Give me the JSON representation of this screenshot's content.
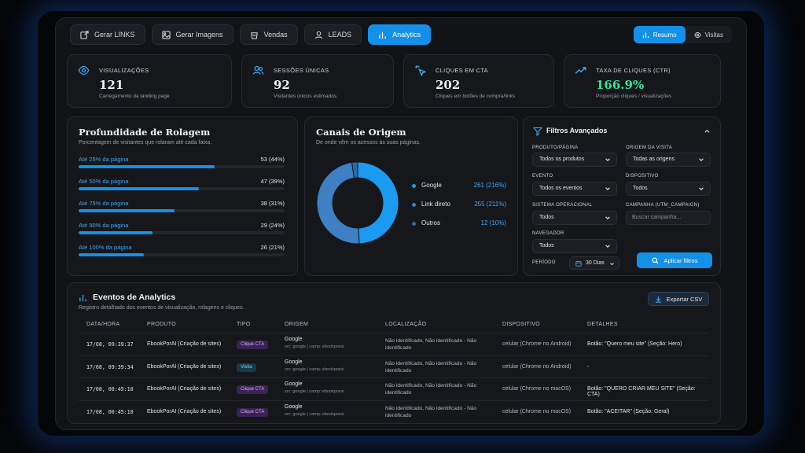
{
  "nav": {
    "tabs": [
      {
        "label": "Gerar LINKS",
        "icon": "external-link-icon"
      },
      {
        "label": "Gerar Imagens",
        "icon": "image-icon"
      },
      {
        "label": "Vendas",
        "icon": "bag-icon"
      },
      {
        "label": "LEADS",
        "icon": "user-icon"
      },
      {
        "label": "Analytics",
        "icon": "bar-chart-icon"
      }
    ],
    "active": "Analytics",
    "views": [
      {
        "label": "Resumo",
        "icon": "bar-chart-icon"
      },
      {
        "label": "Visitas",
        "icon": "eye-icon"
      }
    ],
    "active_view": "Resumo"
  },
  "stats": [
    {
      "label": "VISUALIZAÇÕES",
      "value": "121",
      "sub": "Carregamento da landing page",
      "icon": "eye-icon"
    },
    {
      "label": "SESSÕES ÚNICAS",
      "value": "92",
      "sub": "Visitantes únicos estimados",
      "icon": "users-icon"
    },
    {
      "label": "CLIQUES EM CTA",
      "value": "202",
      "sub": "Cliques em botões de compra/links",
      "icon": "pointer-click-icon"
    },
    {
      "label": "TAXA DE CLIQUES (CTR)",
      "value": "166.9%",
      "sub": "Proporção cliques / visualizações",
      "icon": "trend-up-icon"
    }
  ],
  "scroll": {
    "title": "Profundidade de Rolagem",
    "subtitle": "Porcentagem de visitantes que rolaram até cada faixa.",
    "rows": [
      {
        "label": "Até 25% da página",
        "value": "53 (44%)",
        "pct": 0.44
      },
      {
        "label": "Até 50% da página",
        "value": "47 (39%)",
        "pct": 0.39
      },
      {
        "label": "Até 75% da página",
        "value": "38 (31%)",
        "pct": 0.31
      },
      {
        "label": "Até 90% da página",
        "value": "29 (24%)",
        "pct": 0.24
      },
      {
        "label": "Até 100% da página",
        "value": "26 (21%)",
        "pct": 0.21
      }
    ]
  },
  "channels": {
    "title": "Canais de Origem",
    "subtitle": "De onde vêm os acessos às suas páginas.",
    "items": [
      {
        "name": "Google",
        "value": "261 (216%)",
        "count": 261,
        "color": "#1a9af0"
      },
      {
        "name": "Link direto",
        "value": "255 (211%)",
        "count": 255,
        "color": "#3f7fc4"
      },
      {
        "name": "Outros",
        "value": "12 (10%)",
        "count": 12,
        "color": "#2b6aa8"
      }
    ]
  },
  "filters": {
    "title": "Filtros Avançados",
    "product_label": "PRODUTO/PÁGINA",
    "product_value": "Todos os produtos",
    "origin_label": "ORIGEM DA VISITA",
    "origin_value": "Todas as origens",
    "event_label": "EVENTO",
    "event_value": "Todos os eventos",
    "device_label": "DISPOSITIVO",
    "device_value": "Todos",
    "os_label": "SISTEMA OPERACIONAL",
    "os_value": "Todos",
    "campaign_label": "CAMPANHA (UTM_CAMPAIGN)",
    "campaign_placeholder": "Buscar campanha...",
    "browser_label": "NAVEGADOR",
    "browser_value": "Todos",
    "period_label": "PERÍODO",
    "period_value": "30 Dias",
    "apply_label": "Aplicar filtros"
  },
  "events": {
    "title": "Eventos de Analytics",
    "subtitle": "Registro detalhado dos eventos de visualização, rolagens e cliques.",
    "export_label": "Exportar CSV",
    "columns": [
      "DATA/HORA",
      "PRODUTO",
      "TIPO",
      "ORIGEM",
      "LOCALIZAÇÃO",
      "DISPOSITIVO",
      "DETALHES"
    ],
    "rows": [
      {
        "datetime": "17/08, 09:39:37",
        "product": "EbookPorAI (Criação de sites)",
        "type": "Clique CTA",
        "origin": "Google",
        "origin_sub": "src: google | camp: ebookporai",
        "location": "Não identificado, Não identificado - Não identificado",
        "device": "celular (Chrome no Android)",
        "details": "Botão: \"Quero meu site\" (Seção: Hero)"
      },
      {
        "datetime": "17/08, 09:39:34",
        "product": "EbookPorAI (Criação de sites)",
        "type": "Visita",
        "origin": "Google",
        "origin_sub": "src: google | camp: ebookporai",
        "location": "Não identificado, Não identificado - Não identificado",
        "device": "celular (Chrome no Android)",
        "details": "-"
      },
      {
        "datetime": "17/08, 00:45:10",
        "product": "EbookPorAI (Criação de sites)",
        "type": "Clique CTA",
        "origin": "Google",
        "origin_sub": "src: google | camp: ebookporai",
        "location": "Não identificado, Não identificado - Não identificado",
        "device": "celular (Chrome no macOS)",
        "details": "Botão: \"QUERO CRIAR MEU SITE\" (Seção: CTA)"
      },
      {
        "datetime": "17/08, 00:45:10",
        "product": "EbookPorAI (Criação de sites)",
        "type": "Clique CTA",
        "origin": "Google",
        "origin_sub": "src: google | camp: ebookporai",
        "location": "Não identificado, Não identificado - Não identificado",
        "device": "celular (Chrome no macOS)",
        "details": "Botão: \"ACEITAR\" (Seção: Geral)"
      }
    ]
  }
}
